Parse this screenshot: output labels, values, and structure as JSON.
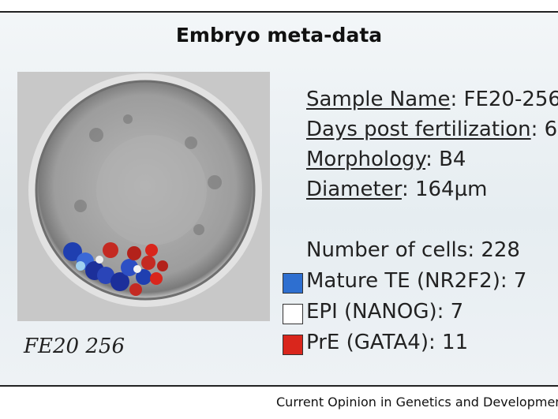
{
  "title": "Embryo meta-data",
  "image_caption": "FE20 256",
  "fields": [
    {
      "label": "Sample Name",
      "rest": ": FE20-256"
    },
    {
      "label": "Days post fertilization",
      "rest": ": 6"
    },
    {
      "label": "Morphology",
      "rest": ": B4"
    },
    {
      "label": "Diameter",
      "rest": ": 164µm"
    }
  ],
  "cell_count": "Number of cells: 228",
  "legend": [
    {
      "text": "Mature TE (NR2F2): 7",
      "color": "#2e6fd0"
    },
    {
      "text": "EPI (NANOG): 7",
      "color": "#ffffff"
    },
    {
      "text": "PrE (GATA4): 11",
      "color": "#d9261c"
    }
  ],
  "footer": "Current Opinion in Genetics and Development"
}
